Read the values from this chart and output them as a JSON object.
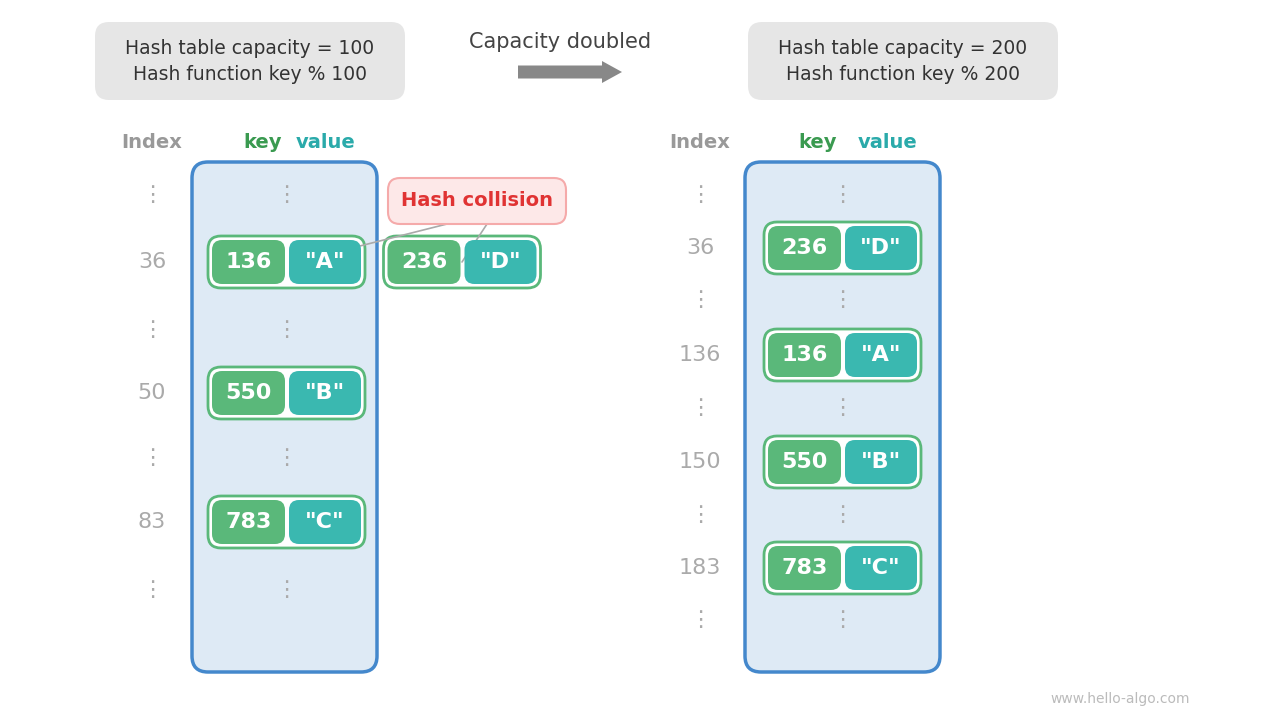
{
  "bg_color": "#ffffff",
  "title_box_color": "#e6e6e6",
  "table_bg_color": "#deeaf5",
  "table_border_color": "#4488cc",
  "key_color": "#5ab87a",
  "value_color": "#3ab8b0",
  "index_color": "#aaaaaa",
  "header_index_color": "#999999",
  "header_key_color": "#3a9a50",
  "header_value_color": "#2aaaaa",
  "collision_box_color": "#fde8e8",
  "collision_border_color": "#f5aaaa",
  "collision_text_color": "#e03333",
  "dots_color": "#aaaaaa",
  "text_color_white": "#ffffff",
  "arrow_color": "#888888",
  "left_box_text1": "Hash table capacity = 100",
  "left_box_text2": "Hash function key % 100",
  "right_box_text1": "Hash table capacity = 200",
  "right_box_text2": "Hash function key % 200",
  "center_text": "Capacity doubled",
  "collision_text": "Hash collision",
  "watermark": "www.hello-algo.com",
  "fig_width": 12.8,
  "fig_height": 7.2,
  "fig_dpi": 100
}
